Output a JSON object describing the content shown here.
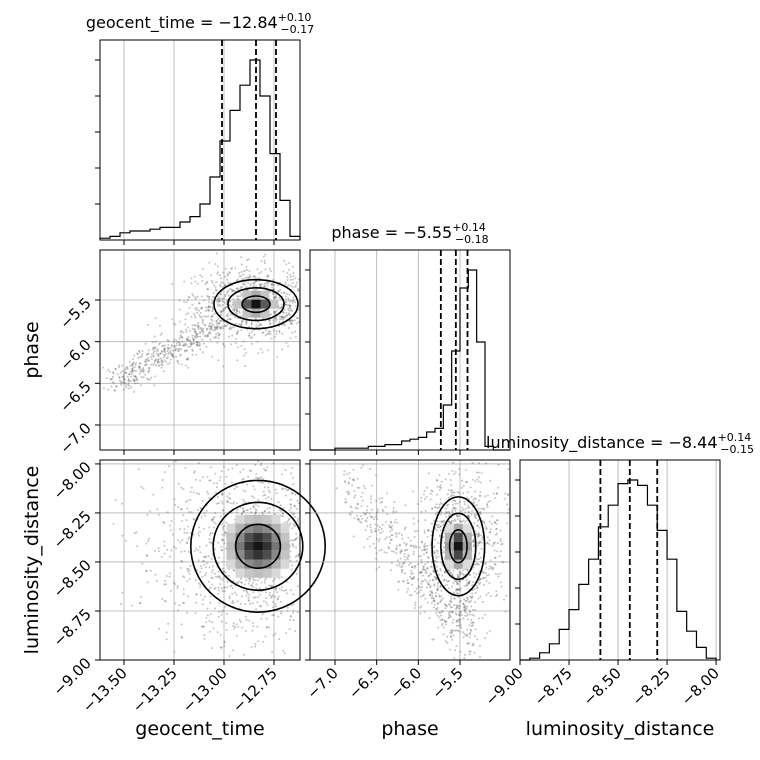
{
  "chart_data": {
    "type": "corner",
    "parameters": [
      "geocent_time",
      "phase",
      "luminosity_distance"
    ],
    "titles": [
      {
        "param": "geocent_time",
        "prefix": "geocent_time = ",
        "value": "−12.84",
        "plus": "+0.10",
        "minus": "−0.17"
      },
      {
        "param": "phase",
        "prefix": "phase = ",
        "value": "−5.55",
        "plus": "+0.14",
        "minus": "−0.18"
      },
      {
        "param": "luminosity_distance",
        "prefix": "luminosity_distance = ",
        "value": "−8.44",
        "plus": "+0.14",
        "minus": "−0.15"
      }
    ],
    "axes": {
      "geocent_time": {
        "range": [
          -13.62,
          -12.62
        ],
        "ticks": [
          -13.5,
          -13.25,
          -13.0,
          -12.75
        ],
        "tick_labels": [
          "−13.50",
          "−13.25",
          "−13.00",
          "−12.75"
        ],
        "label": "geocent_time"
      },
      "phase": {
        "range": [
          -7.3,
          -4.9
        ],
        "ticks": [
          -7.0,
          -6.5,
          -6.0,
          -5.5
        ],
        "tick_labels": [
          "−7.0",
          "−6.5",
          "−6.0",
          "−5.5"
        ],
        "label": "phase"
      },
      "luminosity_distance": {
        "range": [
          -9.0,
          -7.98
        ],
        "ticks": [
          -9.0,
          -8.75,
          -8.5,
          -8.25,
          -8.0
        ],
        "tick_labels": [
          "−9.00",
          "−8.75",
          "−8.50",
          "−8.25",
          "−8.00"
        ],
        "label": "luminosity_distance"
      }
    },
    "histograms": {
      "geocent_time": {
        "bins": [
          -13.62,
          -13.57,
          -13.52,
          -13.47,
          -13.42,
          -13.37,
          -13.32,
          -13.27,
          -13.22,
          -13.17,
          -13.12,
          -13.07,
          -13.02,
          -12.97,
          -12.92,
          -12.87,
          -12.82,
          -12.77,
          -12.72,
          -12.67,
          -12.62
        ],
        "counts": [
          0.01,
          0.02,
          0.04,
          0.05,
          0.05,
          0.06,
          0.07,
          0.07,
          0.1,
          0.13,
          0.2,
          0.35,
          0.55,
          0.72,
          0.86,
          1.0,
          0.8,
          0.48,
          0.22,
          0.02
        ]
      },
      "phase": {
        "bins": [
          -7.3,
          -7.2,
          -7.1,
          -7.0,
          -6.9,
          -6.8,
          -6.7,
          -6.6,
          -6.5,
          -6.4,
          -6.3,
          -6.2,
          -6.1,
          -6.0,
          -5.9,
          -5.8,
          -5.7,
          -5.6,
          -5.5,
          -5.4,
          -5.3,
          -5.2,
          -5.1,
          -5.0,
          -4.9
        ],
        "counts": [
          0.0,
          0.0,
          0.0,
          0.01,
          0.01,
          0.01,
          0.01,
          0.02,
          0.02,
          0.03,
          0.03,
          0.05,
          0.06,
          0.07,
          0.1,
          0.12,
          0.25,
          0.55,
          0.9,
          1.0,
          0.6,
          0.02,
          0.0,
          0.0
        ]
      },
      "luminosity_distance": {
        "bins": [
          -9.0,
          -8.95,
          -8.9,
          -8.85,
          -8.8,
          -8.75,
          -8.7,
          -8.65,
          -8.6,
          -8.55,
          -8.5,
          -8.45,
          -8.4,
          -8.35,
          -8.3,
          -8.25,
          -8.2,
          -8.15,
          -8.1,
          -8.05,
          -8.0
        ],
        "counts": [
          0.0,
          0.01,
          0.04,
          0.09,
          0.17,
          0.28,
          0.42,
          0.56,
          0.74,
          0.86,
          0.98,
          1.0,
          0.97,
          0.86,
          0.72,
          0.56,
          0.27,
          0.16,
          0.07,
          0.01
        ]
      }
    },
    "quantile_lines": {
      "geocent_time": [
        -13.01,
        -12.84,
        -12.74
      ],
      "phase": [
        -5.73,
        -5.55,
        -5.41
      ],
      "luminosity_distance": [
        -8.59,
        -8.44,
        -8.3
      ]
    },
    "pairs": [
      {
        "x": "geocent_time",
        "y": "phase",
        "center": [
          -12.84,
          -5.55
        ],
        "spread": [
          0.1,
          0.14
        ],
        "tail_from": [
          -13.55,
          -6.5
        ],
        "tail_to": [
          -13.05,
          -5.8
        ]
      },
      {
        "x": "geocent_time",
        "y": "luminosity_distance",
        "center": [
          -12.83,
          -8.42
        ],
        "spread": [
          0.16,
          0.16
        ],
        "tail_from": null,
        "tail_to": null
      },
      {
        "x": "phase",
        "y": "luminosity_distance",
        "center": [
          -5.52,
          -8.42
        ],
        "spread": [
          0.15,
          0.12
        ],
        "tail_from": [
          -6.9,
          -8.1
        ],
        "tail_to": [
          -5.3,
          -8.9
        ]
      }
    ],
    "grid": true
  }
}
